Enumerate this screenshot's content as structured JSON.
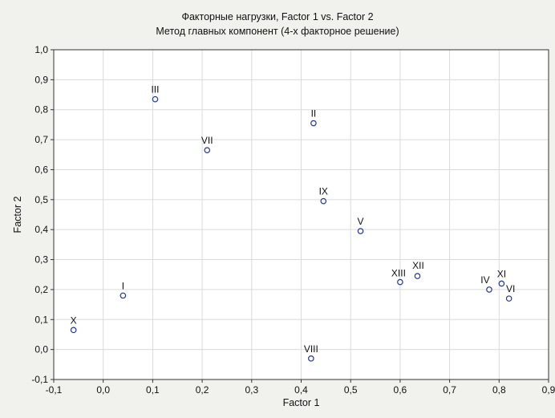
{
  "chart_data": {
    "type": "scatter",
    "title": "Факторные нагрузки, Factor 1 vs. Factor 2",
    "subtitle": "Метод главных компонент (4-х факторное решение)",
    "xlabel": "Factor 1",
    "ylabel": "Factor 2",
    "xlim": [
      -0.1,
      0.9
    ],
    "ylim": [
      -0.1,
      1.0
    ],
    "x_ticks": [
      "-0,1",
      "0,0",
      "0,1",
      "0,2",
      "0,3",
      "0,4",
      "0,5",
      "0,6",
      "0,7",
      "0,8",
      "0,9"
    ],
    "y_ticks": [
      "-0,1",
      "0,0",
      "0,1",
      "0,2",
      "0,3",
      "0,4",
      "0,5",
      "0,6",
      "0,7",
      "0,8",
      "0,9",
      "1,0"
    ],
    "grid": true,
    "points": [
      {
        "label": "I",
        "x": 0.04,
        "y": 0.18
      },
      {
        "label": "II",
        "x": 0.425,
        "y": 0.755
      },
      {
        "label": "III",
        "x": 0.105,
        "y": 0.835
      },
      {
        "label": "IV",
        "x": 0.78,
        "y": 0.2
      },
      {
        "label": "V",
        "x": 0.52,
        "y": 0.395
      },
      {
        "label": "VI",
        "x": 0.82,
        "y": 0.17
      },
      {
        "label": "VII",
        "x": 0.21,
        "y": 0.665
      },
      {
        "label": "VIII",
        "x": 0.42,
        "y": -0.03
      },
      {
        "label": "IX",
        "x": 0.445,
        "y": 0.495
      },
      {
        "label": "X",
        "x": -0.06,
        "y": 0.065
      },
      {
        "label": "XI",
        "x": 0.805,
        "y": 0.22
      },
      {
        "label": "XII",
        "x": 0.635,
        "y": 0.245
      },
      {
        "label": "XIII",
        "x": 0.6,
        "y": 0.225
      }
    ],
    "colors": {
      "background": "#f1f1ed",
      "plot_background": "#ffffff",
      "grid": "#dadada",
      "marker": "#2233aa",
      "text": "#111111"
    }
  }
}
